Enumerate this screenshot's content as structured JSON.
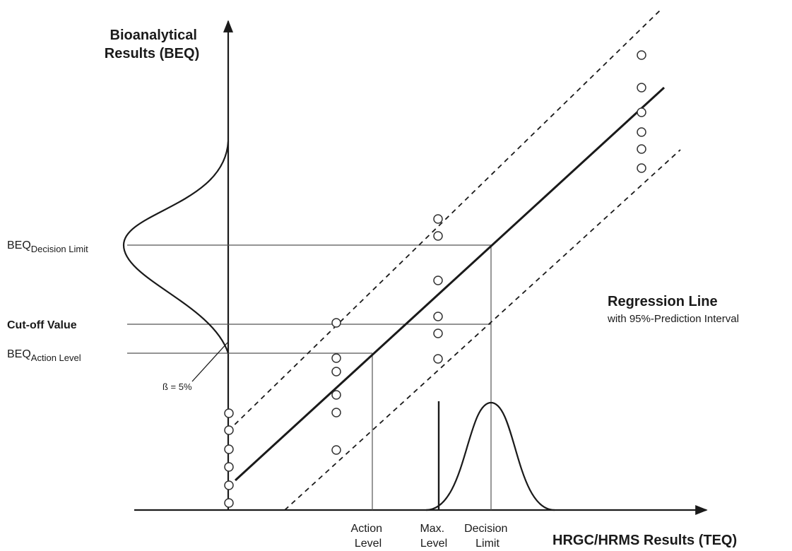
{
  "y_axis_title": [
    "Bioanalytical",
    "Results  (BEQ)"
  ],
  "x_axis_title": "HRGC/HRMS Results (TEQ)",
  "levels": {
    "beq_decision_limit": {
      "main": "BEQ",
      "sub": "Decision Limit"
    },
    "cut_off_value": "Cut-off Value",
    "beq_action_level": {
      "main": "BEQ",
      "sub": "Action Level"
    }
  },
  "beta_label": "ß = 5%",
  "regression": {
    "title": "Regression Line",
    "subtitle": "with 95%-Prediction Interval"
  },
  "x_markers": {
    "action_level": [
      "Action",
      "Level"
    ],
    "max_level": [
      "Max.",
      "Level"
    ],
    "decision_limit": [
      "Decision",
      "Limit"
    ]
  }
}
